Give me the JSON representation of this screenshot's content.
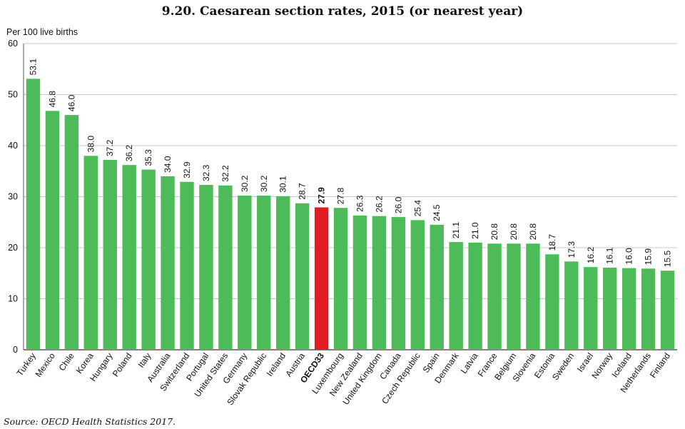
{
  "chart_data": {
    "type": "bar",
    "title": "9.20. Caesarean section rates, 2015 (or nearest year)",
    "ylabel": "Per 100 live births",
    "ylim": [
      0,
      60
    ],
    "yticks": [
      0,
      10,
      20,
      30,
      40,
      50,
      60
    ],
    "grid": "horizontal",
    "categories": [
      "Turkey",
      "Mexico",
      "Chile",
      "Korea",
      "Hungary",
      "Poland",
      "Italy",
      "Australia",
      "Switzerland",
      "Portugal",
      "United States",
      "Germany",
      "Slovak Republic",
      "Ireland",
      "Austria",
      "OECD33",
      "Luxembourg",
      "New Zealand",
      "United Kingdom",
      "Canada",
      "Czech Republic",
      "Spain",
      "Denmark",
      "Latvia",
      "France",
      "Belgium",
      "Slovenia",
      "Estonia",
      "Sweden",
      "Israel",
      "Norway",
      "Iceland",
      "Netherlands",
      "Finland"
    ],
    "values": [
      53.1,
      46.8,
      46.0,
      38.0,
      37.2,
      36.2,
      35.3,
      34.0,
      32.9,
      32.3,
      32.2,
      30.2,
      30.2,
      30.1,
      28.7,
      27.9,
      27.8,
      26.3,
      26.2,
      26.0,
      25.4,
      24.5,
      21.1,
      21.0,
      20.8,
      20.8,
      20.8,
      18.7,
      17.3,
      16.2,
      16.1,
      16.0,
      15.9,
      15.5
    ],
    "value_labels": [
      "53.1",
      "46.8",
      "46.0",
      "38.0",
      "37.2",
      "36.2",
      "35.3",
      "34.0",
      "32.9",
      "32.3",
      "32.2",
      "30.2",
      "30.2",
      "30.1",
      "28.7",
      "27.9",
      "27.8",
      "26.3",
      "26.2",
      "26.0",
      "25.4",
      "24.5",
      "21.1",
      "21.0",
      "20.8",
      "20.8",
      "20.8",
      "18.7",
      "17.3",
      "16.2",
      "16.1",
      "16.0",
      "15.9",
      "15.5"
    ],
    "highlight": "OECD33",
    "colors": {
      "bar": "#4cbb58",
      "highlight": "#e11d23",
      "grid": "#c9c9c9",
      "axis": "#555555"
    }
  },
  "source": "Source: OECD Health Statistics 2017."
}
